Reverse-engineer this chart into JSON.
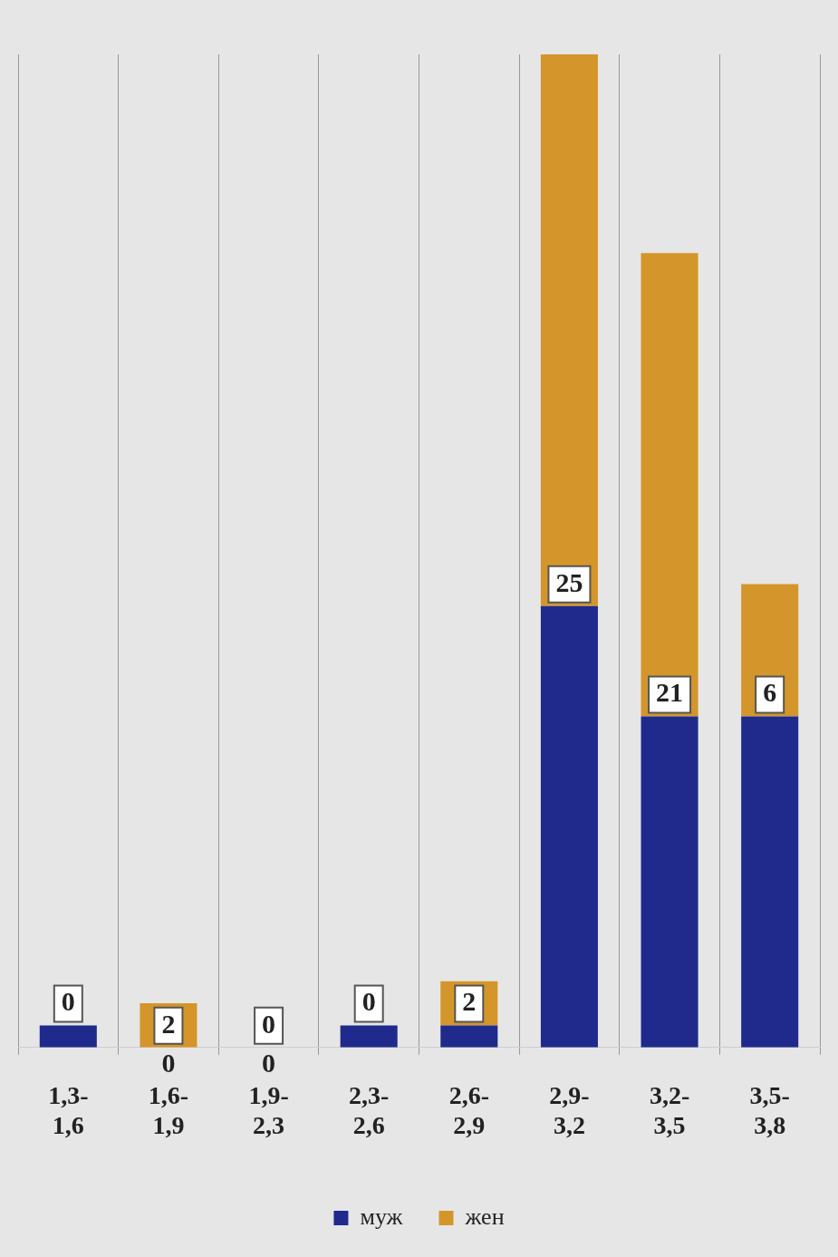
{
  "chart_data": {
    "type": "bar",
    "stacked": true,
    "categories": [
      "1,3-\n1,6",
      "1,6-\n1,9",
      "1,9-\n2,3",
      "2,3-\n2,6",
      "2,6-\n2,9",
      "2,9-\n3,2",
      "3,2-\n3,5",
      "3,5-\n3,8"
    ],
    "series": [
      {
        "name": "муж",
        "color": "#1f2a8c",
        "values": [
          1,
          0,
          0,
          1,
          1,
          20,
          15,
          15
        ],
        "value_labels": [
          null,
          "0",
          "0",
          null,
          null,
          null,
          null,
          null
        ]
      },
      {
        "name": "жен",
        "color": "#d4962a",
        "values": [
          0,
          2,
          0,
          0,
          2,
          25,
          21,
          6
        ],
        "value_labels": [
          "0",
          "2",
          "0",
          "0",
          "2",
          "25",
          "21",
          "6"
        ]
      }
    ],
    "grid": "x",
    "legend": "bottom"
  }
}
